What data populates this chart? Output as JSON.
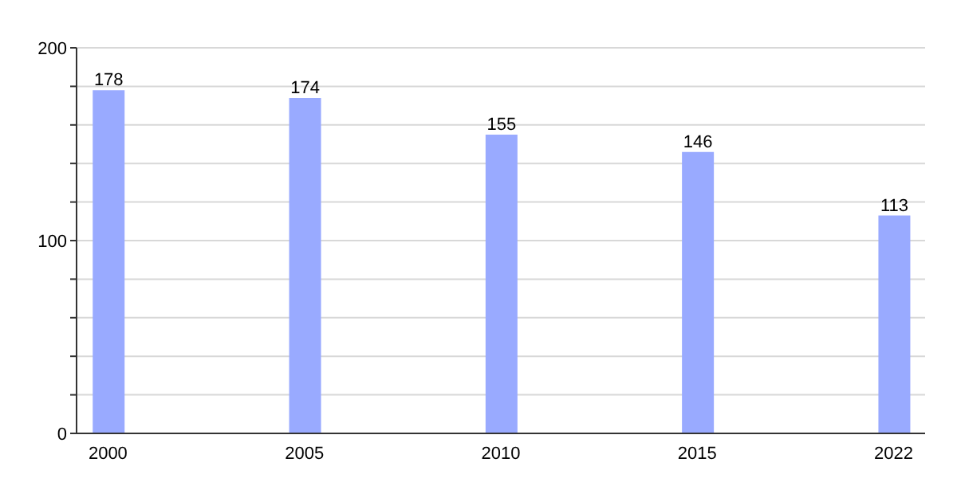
{
  "chart_data": {
    "type": "bar",
    "categories": [
      "2000",
      "2005",
      "2010",
      "2015",
      "2022"
    ],
    "values": [
      178,
      174,
      155,
      146,
      113
    ],
    "color": "#99aaff",
    "ylim": [
      0,
      200
    ],
    "yticks": [
      0,
      {
        "value": 20,
        "label": null
      },
      {
        "value": 40,
        "label": null
      },
      {
        "value": 60,
        "label": null
      },
      {
        "value": 80,
        "label": null
      },
      100,
      {
        "value": 120,
        "label": null
      },
      {
        "value": 140,
        "label": null
      },
      {
        "value": 160,
        "label": null
      },
      {
        "value": 180,
        "label": null
      },
      200
    ],
    "grid": "y",
    "data_labels": true
  }
}
